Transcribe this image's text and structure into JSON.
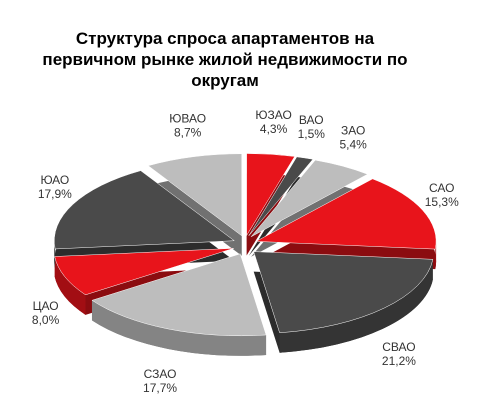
{
  "chart_data": {
    "type": "pie",
    "title": "Структура  спроса апартаментов на первичном рынке жилой недвижимости по округам",
    "categories": [
      "ЮЗАО",
      "ВАО",
      "ЗАО",
      "САО",
      "СВАО",
      "СЗАО",
      "ЦАО",
      "ЮАО",
      "ЮВАО"
    ],
    "values": [
      4.3,
      1.5,
      5.4,
      15.3,
      21.2,
      17.7,
      8.0,
      17.9,
      8.7
    ],
    "value_labels": [
      "4,3%",
      "1,5%",
      "5,4%",
      "15,3%",
      "21,2%",
      "17,7%",
      "8,0%",
      "17,9%",
      "8,7%"
    ],
    "colors": [
      "#e8141b",
      "#4a4a4a",
      "#bdbdbd",
      "#e8141b",
      "#4a4a4a",
      "#bdbdbd",
      "#e8141b",
      "#4a4a4a",
      "#bdbdbd"
    ]
  }
}
